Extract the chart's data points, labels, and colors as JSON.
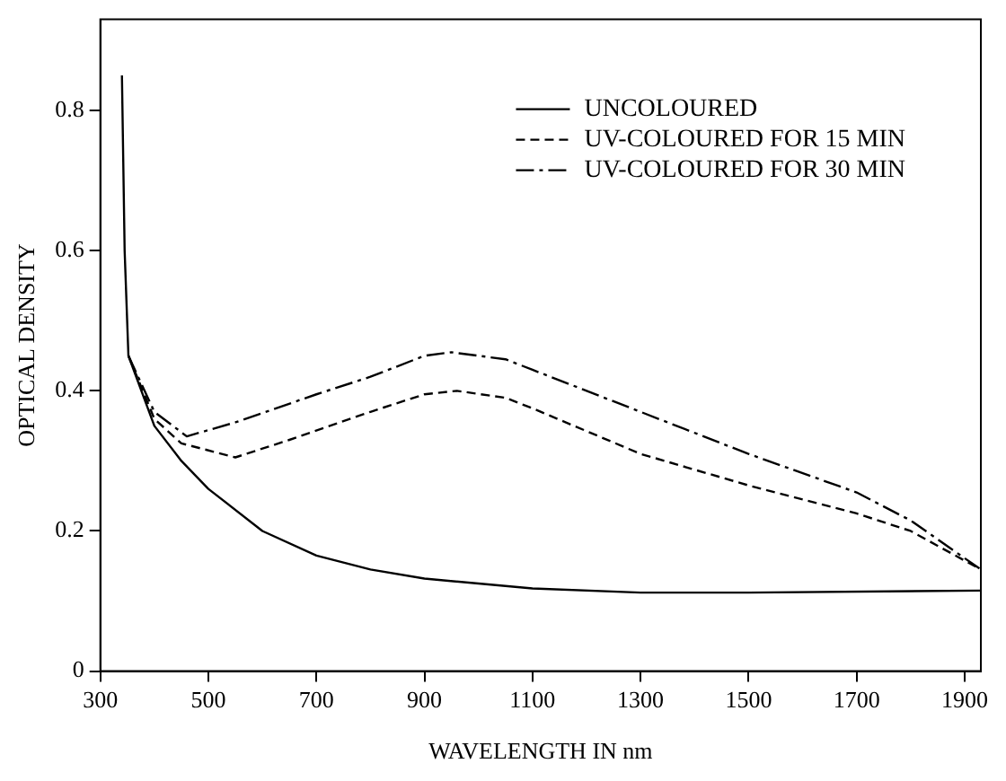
{
  "chart_data": {
    "type": "line",
    "xlabel": "WAVELENGTH IN nm",
    "ylabel": "OPTICAL DENSITY",
    "xlim": [
      300,
      1930
    ],
    "xticks": [
      300,
      500,
      700,
      900,
      1100,
      1300,
      1500,
      1700,
      1900
    ],
    "ylim": [
      0,
      0.93
    ],
    "yticks": [
      0,
      0.2,
      0.4,
      0.6,
      0.8
    ],
    "grid": false,
    "legend": "top right",
    "marker": "none",
    "series": [
      {
        "name": "UNCOLOURED",
        "color": "#000000",
        "line_style": "solid",
        "x": [
          340,
          345,
          352,
          400,
          450,
          500,
          600,
          700,
          800,
          900,
          1100,
          1300,
          1500,
          1930
        ],
        "values": [
          0.85,
          0.6,
          0.45,
          0.35,
          0.3,
          0.26,
          0.2,
          0.165,
          0.145,
          0.132,
          0.118,
          0.112,
          0.112,
          0.115
        ]
      },
      {
        "name": "UV-COLOURED FOR 15 MIN",
        "color": "#000000",
        "line_style": "dashed",
        "x": [
          352,
          400,
          450,
          550,
          650,
          800,
          900,
          960,
          1050,
          1100,
          1300,
          1500,
          1700,
          1800,
          1930
        ],
        "values": [
          0.45,
          0.36,
          0.325,
          0.305,
          0.33,
          0.37,
          0.395,
          0.4,
          0.39,
          0.375,
          0.31,
          0.265,
          0.225,
          0.2,
          0.145
        ]
      },
      {
        "name": "UV-COLOURED FOR 30 MIN",
        "color": "#000000",
        "line_style": "dashdot",
        "x": [
          352,
          400,
          460,
          550,
          700,
          800,
          900,
          950,
          1050,
          1100,
          1300,
          1500,
          1700,
          1800,
          1930
        ],
        "values": [
          0.45,
          0.37,
          0.335,
          0.355,
          0.395,
          0.42,
          0.45,
          0.455,
          0.445,
          0.43,
          0.37,
          0.31,
          0.255,
          0.215,
          0.145
        ]
      }
    ]
  }
}
